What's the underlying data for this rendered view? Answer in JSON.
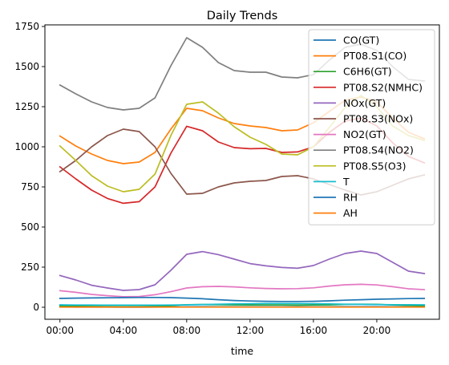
{
  "chart_data": {
    "type": "line",
    "title": "Daily Trends",
    "xlabel": "time",
    "ylabel": "",
    "ylim": [
      -75,
      1760
    ],
    "xlim": [
      -0.95,
      23.95
    ],
    "x": [
      0,
      1,
      2,
      3,
      4,
      5,
      6,
      7,
      8,
      9,
      10,
      11,
      12,
      13,
      14,
      15,
      16,
      17,
      18,
      19,
      20,
      21,
      22,
      23
    ],
    "x_ticks": [
      {
        "value": 0,
        "label": "00:00"
      },
      {
        "value": 4,
        "label": "04:00"
      },
      {
        "value": 8,
        "label": "08:00"
      },
      {
        "value": 12,
        "label": "12:00"
      },
      {
        "value": 16,
        "label": "16:00"
      },
      {
        "value": 20,
        "label": "20:00"
      }
    ],
    "y_ticks": [
      0,
      250,
      500,
      750,
      1000,
      1250,
      1500,
      1750
    ],
    "grid": false,
    "legend_position": "top-right",
    "series": [
      {
        "name": "CO(GT)",
        "color": "#1f77b4",
        "values": [
          1.5,
          1.3,
          1.1,
          0.9,
          0.8,
          0.8,
          1.1,
          1.8,
          2.7,
          3.0,
          2.8,
          2.6,
          2.5,
          2.5,
          2.4,
          2.4,
          2.5,
          2.8,
          3.2,
          3.5,
          3.3,
          2.7,
          2.2,
          1.8
        ]
      },
      {
        "name": "PT08.S1(CO)",
        "color": "#ff7f0e",
        "values": [
          1067,
          1005,
          955,
          915,
          895,
          905,
          965,
          1110,
          1240,
          1225,
          1180,
          1145,
          1130,
          1120,
          1100,
          1105,
          1150,
          1220,
          1290,
          1310,
          1280,
          1180,
          1090,
          1050
        ]
      },
      {
        "name": "C6H6(GT)",
        "color": "#2ca02c",
        "values": [
          8,
          6,
          5,
          4,
          3,
          4,
          6,
          10,
          16,
          17,
          16,
          15,
          14,
          14,
          14,
          13,
          14,
          15,
          18,
          19,
          18,
          14,
          11,
          9
        ]
      },
      {
        "name": "PT08.S2(NMHC)",
        "color": "#d62728",
        "values": [
          875,
          800,
          730,
          678,
          648,
          658,
          750,
          960,
          1128,
          1100,
          1030,
          995,
          988,
          990,
          965,
          968,
          1000,
          1090,
          1160,
          1180,
          1130,
          1025,
          940,
          900
        ]
      },
      {
        "name": "NOx(GT)",
        "color": "#9467bd",
        "values": [
          198,
          170,
          137,
          120,
          105,
          110,
          140,
          230,
          330,
          347,
          328,
          300,
          272,
          258,
          248,
          243,
          260,
          300,
          335,
          350,
          335,
          280,
          225,
          210
        ]
      },
      {
        "name": "PT08.S3(NOx)",
        "color": "#8c564b",
        "values": [
          845,
          915,
          1000,
          1070,
          1110,
          1095,
          1000,
          835,
          705,
          710,
          750,
          775,
          785,
          790,
          815,
          820,
          800,
          765,
          730,
          700,
          720,
          760,
          800,
          825
        ]
      },
      {
        "name": "NO2(GT)",
        "color": "#e377c2",
        "values": [
          103,
          93,
          80,
          72,
          66,
          67,
          78,
          97,
          120,
          128,
          130,
          127,
          121,
          117,
          115,
          116,
          121,
          132,
          140,
          143,
          139,
          128,
          115,
          110
        ]
      },
      {
        "name": "PT08.S4(NO2)",
        "color": "#7f7f7f",
        "values": [
          1385,
          1330,
          1280,
          1245,
          1230,
          1240,
          1305,
          1505,
          1680,
          1620,
          1525,
          1475,
          1465,
          1465,
          1435,
          1430,
          1450,
          1540,
          1620,
          1640,
          1600,
          1500,
          1420,
          1410
        ]
      },
      {
        "name": "PT08.S5(O3)",
        "color": "#bcbd22",
        "values": [
          1005,
          915,
          820,
          755,
          720,
          735,
          830,
          1070,
          1265,
          1280,
          1210,
          1125,
          1060,
          1015,
          955,
          950,
          1000,
          1120,
          1245,
          1320,
          1250,
          1130,
          1070,
          1040
        ]
      },
      {
        "name": "T",
        "color": "#17becf",
        "values": [
          15,
          14,
          14,
          13,
          13,
          13,
          13,
          14,
          15,
          17,
          19,
          21,
          22,
          23,
          23,
          23,
          22,
          21,
          19,
          18,
          17,
          16,
          16,
          15
        ]
      },
      {
        "name": "RH",
        "color": "#1f77b4",
        "values": [
          55,
          57,
          58,
          59,
          60,
          61,
          61,
          60,
          57,
          53,
          47,
          42,
          39,
          37,
          36,
          36,
          37,
          40,
          44,
          47,
          50,
          52,
          54,
          55
        ]
      },
      {
        "name": "AH",
        "color": "#ff7f0e",
        "values": [
          1.0,
          1.0,
          1.0,
          1.0,
          1.0,
          1.0,
          1.0,
          1.0,
          1.0,
          1.0,
          1.0,
          1.0,
          1.0,
          1.0,
          1.0,
          1.0,
          1.0,
          1.0,
          1.0,
          1.0,
          1.0,
          1.0,
          1.0,
          1.0
        ]
      }
    ]
  }
}
